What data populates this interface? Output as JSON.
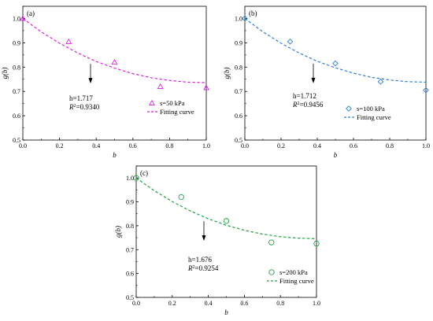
{
  "chart_data": [
    {
      "type": "scatter",
      "panel_label": "(a)",
      "xlabel": "b",
      "ylabel": "g(b)",
      "xlim": [
        0.0,
        1.0
      ],
      "ylim": [
        0.5,
        1.05
      ],
      "xticks": [
        "0.0",
        "0.2",
        "0.4",
        "0.6",
        "0.8",
        "1.0"
      ],
      "yticks": [
        "0.5",
        "0.6",
        "0.7",
        "0.8",
        "0.9",
        "1.0"
      ],
      "series": [
        {
          "name": "s=50 kPa",
          "marker": "triangle",
          "color": "#e020e0",
          "x": [
            0.0,
            0.25,
            0.5,
            0.75,
            1.0
          ],
          "y": [
            1.0,
            0.905,
            0.82,
            0.72,
            0.715
          ]
        },
        {
          "name": "Fitting curve",
          "style": "dashed",
          "color": "#e020e0",
          "x": [
            0.0,
            0.1,
            0.2,
            0.3,
            0.4,
            0.5,
            0.6,
            0.7,
            0.8,
            0.9,
            1.0
          ],
          "y": [
            1.0,
            0.945,
            0.898,
            0.858,
            0.823,
            0.796,
            0.773,
            0.756,
            0.745,
            0.738,
            0.736
          ]
        }
      ],
      "annotation": {
        "h": "h=1.717",
        "r2": "0.9340"
      },
      "legend": [
        "s=50 kPa",
        "Fitting curve"
      ]
    },
    {
      "type": "scatter",
      "panel_label": "(b)",
      "xlabel": "b",
      "ylabel": "g(b)",
      "xlim": [
        0.0,
        1.0
      ],
      "ylim": [
        0.5,
        1.05
      ],
      "xticks": [
        "0.0",
        "0.2",
        "0.4",
        "0.6",
        "0.8",
        "1.0"
      ],
      "yticks": [
        "0.5",
        "0.6",
        "0.7",
        "0.8",
        "0.9",
        "1.0"
      ],
      "series": [
        {
          "name": "s=100 kPa",
          "marker": "diamond",
          "color": "#2a7fe0",
          "x": [
            0.0,
            0.25,
            0.5,
            0.75,
            1.0
          ],
          "y": [
            1.0,
            0.905,
            0.815,
            0.74,
            0.705
          ]
        },
        {
          "name": "Fitting curve",
          "style": "dashed",
          "color": "#2a7fe0",
          "x": [
            0.0,
            0.1,
            0.2,
            0.3,
            0.4,
            0.5,
            0.6,
            0.7,
            0.8,
            0.9,
            1.0
          ],
          "y": [
            1.0,
            0.945,
            0.898,
            0.858,
            0.824,
            0.797,
            0.775,
            0.758,
            0.747,
            0.74,
            0.738
          ]
        }
      ],
      "annotation": {
        "h": "h=1.712",
        "r2": "0.9456"
      },
      "legend": [
        "s=100 kPa",
        "Fitting curve"
      ]
    },
    {
      "type": "scatter",
      "panel_label": "(c)",
      "xlabel": "b",
      "ylabel": "g(b)",
      "xlim": [
        0.0,
        1.0
      ],
      "ylim": [
        0.5,
        1.05
      ],
      "xticks": [
        "0.0",
        "0.2",
        "0.4",
        "0.6",
        "0.8",
        "1.0"
      ],
      "yticks": [
        "0.5",
        "0.6",
        "0.7",
        "0.8",
        "0.9",
        "1.0"
      ],
      "series": [
        {
          "name": "s=200 kPa",
          "marker": "circle",
          "color": "#20a040",
          "x": [
            0.0,
            0.25,
            0.5,
            0.75,
            1.0
          ],
          "y": [
            1.0,
            0.92,
            0.82,
            0.73,
            0.725
          ]
        },
        {
          "name": "Fitting curve",
          "style": "dashed",
          "color": "#20a040",
          "x": [
            0.0,
            0.1,
            0.2,
            0.3,
            0.4,
            0.5,
            0.6,
            0.7,
            0.8,
            0.9,
            1.0
          ],
          "y": [
            1.0,
            0.947,
            0.901,
            0.862,
            0.829,
            0.802,
            0.781,
            0.765,
            0.754,
            0.748,
            0.746
          ]
        }
      ],
      "annotation": {
        "h": "h=1.676",
        "r2": "0.9254"
      },
      "legend": [
        "s=200 kPa",
        "Fitting curve"
      ]
    }
  ]
}
